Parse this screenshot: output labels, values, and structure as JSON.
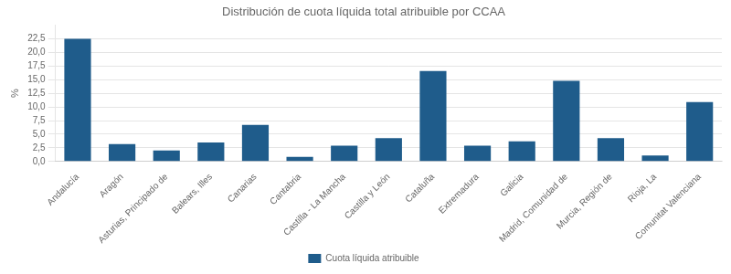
{
  "chart_data": {
    "type": "bar",
    "title": "Distribución de cuota líquida total atribuible por CCAA",
    "categories": [
      "Andalucía",
      "Aragón",
      "Asturias, Principado de",
      "Balears, Illes",
      "Canarias",
      "Cantabria",
      "Castilla - La Mancha",
      "Castilla y León",
      "Cataluña",
      "Extremadura",
      "Galicia",
      "Madrid, Comunidad de",
      "Murcia, Región de",
      "Rioja, La",
      "Comunitat Valenciana"
    ],
    "series": [
      {
        "name": "Cuota líquida atribuible",
        "color": "#1F5C8B",
        "values": [
          22.5,
          3.2,
          2.0,
          3.5,
          6.7,
          0.85,
          2.9,
          4.3,
          16.6,
          2.9,
          3.7,
          14.8,
          4.3,
          1.1,
          10.9
        ]
      }
    ],
    "ylabel": "%",
    "ylim": [
      0,
      25
    ],
    "yticks": [
      {
        "value": 0.0,
        "label": "0,0"
      },
      {
        "value": 2.5,
        "label": "2,5"
      },
      {
        "value": 5.0,
        "label": "5,0"
      },
      {
        "value": 7.5,
        "label": "7,5"
      },
      {
        "value": 10.0,
        "label": "10,0"
      },
      {
        "value": 12.5,
        "label": "12,5"
      },
      {
        "value": 15.0,
        "label": "15,0"
      },
      {
        "value": 17.5,
        "label": "17,5"
      },
      {
        "value": 20.0,
        "label": "20,0"
      },
      {
        "value": 22.5,
        "label": "22,5"
      }
    ],
    "grid": true,
    "legend": "bottom"
  }
}
